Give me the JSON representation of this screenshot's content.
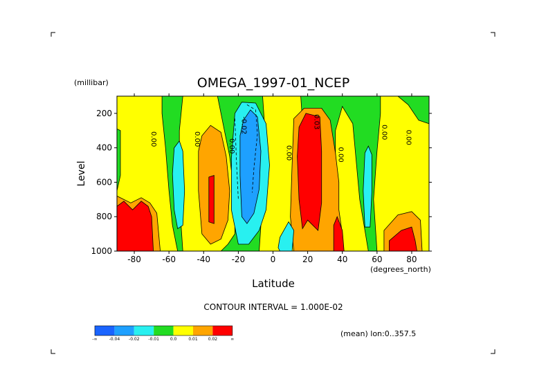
{
  "chart_data": {
    "type": "heatmap",
    "title": "OMEGA_1997-01_NCEP",
    "ylabel": "Level",
    "yunit": "(millibar)",
    "xlabel": "Latitude",
    "xunit": "(degrees_north)",
    "contour_interval_text": "CONTOUR INTERVAL = 1.000E-02",
    "averaging_note": "(mean) lon:0..357.5",
    "xlim": [
      -90,
      90
    ],
    "ylim": [
      1000,
      100
    ],
    "x_ticks": [
      -80,
      -60,
      -40,
      -20,
      0,
      20,
      40,
      60,
      80
    ],
    "y_ticks": [
      200,
      400,
      600,
      800,
      1000
    ],
    "contour_labels": [
      {
        "text": "0.00",
        "lat": -70,
        "level": 350
      },
      {
        "text": "0.00",
        "lat": -45,
        "level": 350
      },
      {
        "text": "0.00",
        "lat": -25,
        "level": 390
      },
      {
        "text": "-0.02",
        "lat": -18,
        "level": 270
      },
      {
        "text": "0.00",
        "lat": 8,
        "level": 430
      },
      {
        "text": "0.03",
        "lat": 24,
        "level": 250
      },
      {
        "text": "0.00",
        "lat": 38,
        "level": 440
      },
      {
        "text": "0.00",
        "lat": 63,
        "level": 310
      },
      {
        "text": "0.00",
        "lat": 77,
        "level": 340
      }
    ],
    "legend": {
      "bins": [
        {
          "color": "#1a64ff",
          "label": "-∞"
        },
        {
          "color": "#1ea0ff",
          "label": "-0.04"
        },
        {
          "color": "#28f0f0",
          "label": "-0.02"
        },
        {
          "color": "#22dc22",
          "label": "-0.01"
        },
        {
          "color": "#ffff00",
          "label": "0.0"
        },
        {
          "color": "#ffa500",
          "label": "0.01"
        },
        {
          "color": "#ff0000",
          "label": "0.02"
        }
      ],
      "end_label": "∞"
    }
  }
}
